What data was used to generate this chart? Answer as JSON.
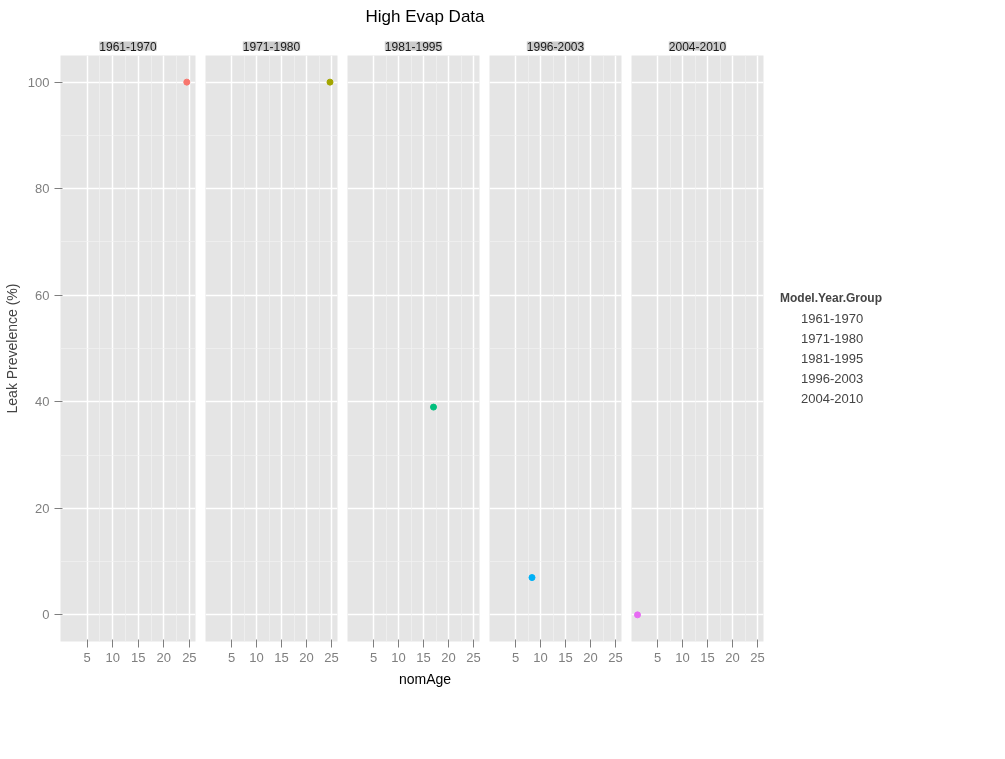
{
  "chart_data": [
    {
      "type": "scatter",
      "subtitle": "1961-1970",
      "ylabel": "Leak Prevelence (%)",
      "legend": "right",
      "legend_title": "Model.Year.Group",
      "marker": "circle",
      "grid": true,
      "xlim": [
        -0.2,
        26.2
      ],
      "xticks": [
        5,
        10,
        15,
        20,
        25
      ],
      "ylim": [
        -5,
        105
      ],
      "yticks": [
        0,
        20,
        40,
        60,
        80,
        100
      ],
      "series": [
        {
          "name": "1961-1970",
          "color": "#f8766d",
          "x": [
            24.5
          ],
          "values": [
            100
          ]
        }
      ]
    },
    {
      "type": "scatter",
      "subtitle": "1971-1980",
      "marker": "circle",
      "grid": true,
      "tick_labels": "x",
      "xlim": [
        -0.2,
        26.2
      ],
      "xticks": [
        5,
        10,
        15,
        20,
        25
      ],
      "ylim": [
        -5,
        105
      ],
      "yticks": [
        0,
        20,
        40,
        60,
        80,
        100
      ],
      "series": [
        {
          "name": "1971-1980",
          "color": "#a3a500",
          "x": [
            24.7
          ],
          "values": [
            100
          ]
        }
      ]
    },
    {
      "type": "scatter",
      "title": "High Evap Data",
      "subtitle": "1981-1995",
      "xlabel": "nomAge",
      "marker": "circle",
      "grid": true,
      "tick_labels": "x",
      "xlim": [
        -0.2,
        26.2
      ],
      "xticks": [
        5,
        10,
        15,
        20,
        25
      ],
      "ylim": [
        -5,
        105
      ],
      "yticks": [
        0,
        20,
        40,
        60,
        80,
        100
      ],
      "series": [
        {
          "name": "1981-1995",
          "color": "#00bf7d",
          "x": [
            17
          ],
          "values": [
            39
          ]
        }
      ]
    },
    {
      "type": "scatter",
      "subtitle": "1996-2003",
      "marker": "circle",
      "grid": true,
      "tick_labels": "x",
      "xlim": [
        -0.2,
        26.2
      ],
      "xticks": [
        5,
        10,
        15,
        20,
        25
      ],
      "ylim": [
        -5,
        105
      ],
      "yticks": [
        0,
        20,
        40,
        60,
        80,
        100
      ],
      "series": [
        {
          "name": "1996-2003",
          "color": "#00b0f6",
          "x": [
            8.3
          ],
          "values": [
            7
          ]
        }
      ]
    },
    {
      "type": "scatter",
      "subtitle": "2004-2010",
      "marker": "circle",
      "grid": true,
      "tick_labels": "x",
      "xlim": [
        -0.2,
        26.2
      ],
      "xticks": [
        5,
        10,
        15,
        20,
        25
      ],
      "ylim": [
        -5,
        105
      ],
      "yticks": [
        0,
        20,
        40,
        60,
        80,
        100
      ],
      "series": [
        {
          "name": "2004-2010",
          "color": "#e76bf3",
          "x": [
            1
          ],
          "values": [
            0
          ]
        }
      ]
    }
  ]
}
